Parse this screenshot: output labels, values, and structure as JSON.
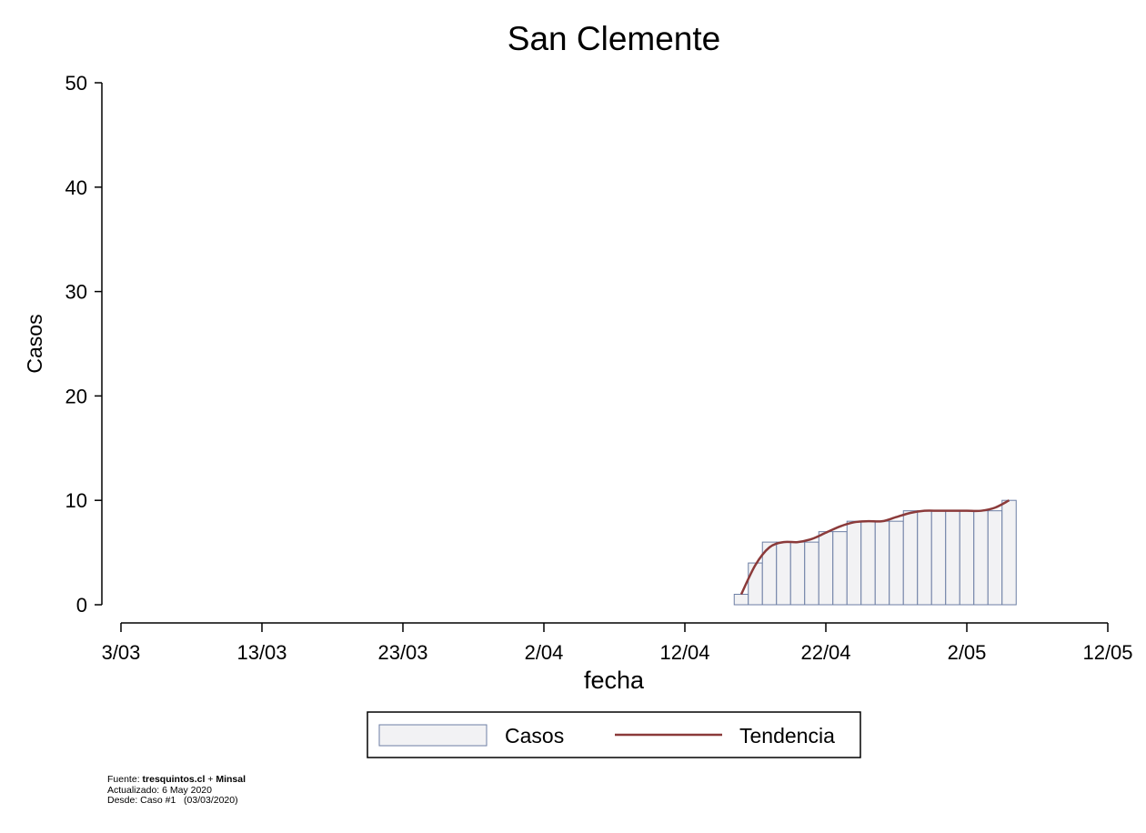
{
  "chart_data": {
    "type": "bar",
    "title": "San Clemente",
    "xlabel": "fecha",
    "ylabel": "Casos",
    "ylim": [
      0,
      50
    ],
    "yticks": [
      0,
      10,
      20,
      30,
      40,
      50
    ],
    "xlim": [
      "2020-03-03",
      "2020-05-12"
    ],
    "xticks": [
      {
        "date": "2020-03-03",
        "label": "3/03"
      },
      {
        "date": "2020-03-13",
        "label": "13/03"
      },
      {
        "date": "2020-03-23",
        "label": "23/03"
      },
      {
        "date": "2020-04-02",
        "label": "2/04"
      },
      {
        "date": "2020-04-12",
        "label": "12/04"
      },
      {
        "date": "2020-04-22",
        "label": "22/04"
      },
      {
        "date": "2020-05-02",
        "label": "2/05"
      },
      {
        "date": "2020-05-12",
        "label": "12/05"
      }
    ],
    "dates": [
      "2020-04-16",
      "2020-04-17",
      "2020-04-18",
      "2020-04-19",
      "2020-04-20",
      "2020-04-21",
      "2020-04-22",
      "2020-04-23",
      "2020-04-24",
      "2020-04-25",
      "2020-04-26",
      "2020-04-27",
      "2020-04-28",
      "2020-04-29",
      "2020-04-30",
      "2020-05-01",
      "2020-05-02",
      "2020-05-03",
      "2020-05-04",
      "2020-05-05"
    ],
    "series": [
      {
        "name": "Casos",
        "kind": "bar",
        "color": "#f2f2f4",
        "edge": "#6c7ea4",
        "values": [
          1,
          4,
          6,
          6,
          6,
          6,
          7,
          7,
          8,
          8,
          8,
          8,
          9,
          9,
          9,
          9,
          9,
          9,
          9,
          10
        ]
      },
      {
        "name": "Tendencia",
        "kind": "line",
        "color": "#8b3a3a",
        "values": [
          1,
          3.8,
          5.5,
          6,
          6,
          6.3,
          6.9,
          7.5,
          7.9,
          8,
          8,
          8.4,
          8.8,
          9,
          9,
          9,
          9,
          9,
          9.3,
          10
        ]
      }
    ],
    "legend_position": "bottom",
    "grid": false
  },
  "footer": {
    "source_prefix": "Fuente: ",
    "source_site": "tresquintos.cl",
    "source_plus": " + ",
    "source_org": "Minsal",
    "updated": "Actualizado: 6 May 2020",
    "since": "Desde: Caso #1   (03/03/2020)"
  }
}
